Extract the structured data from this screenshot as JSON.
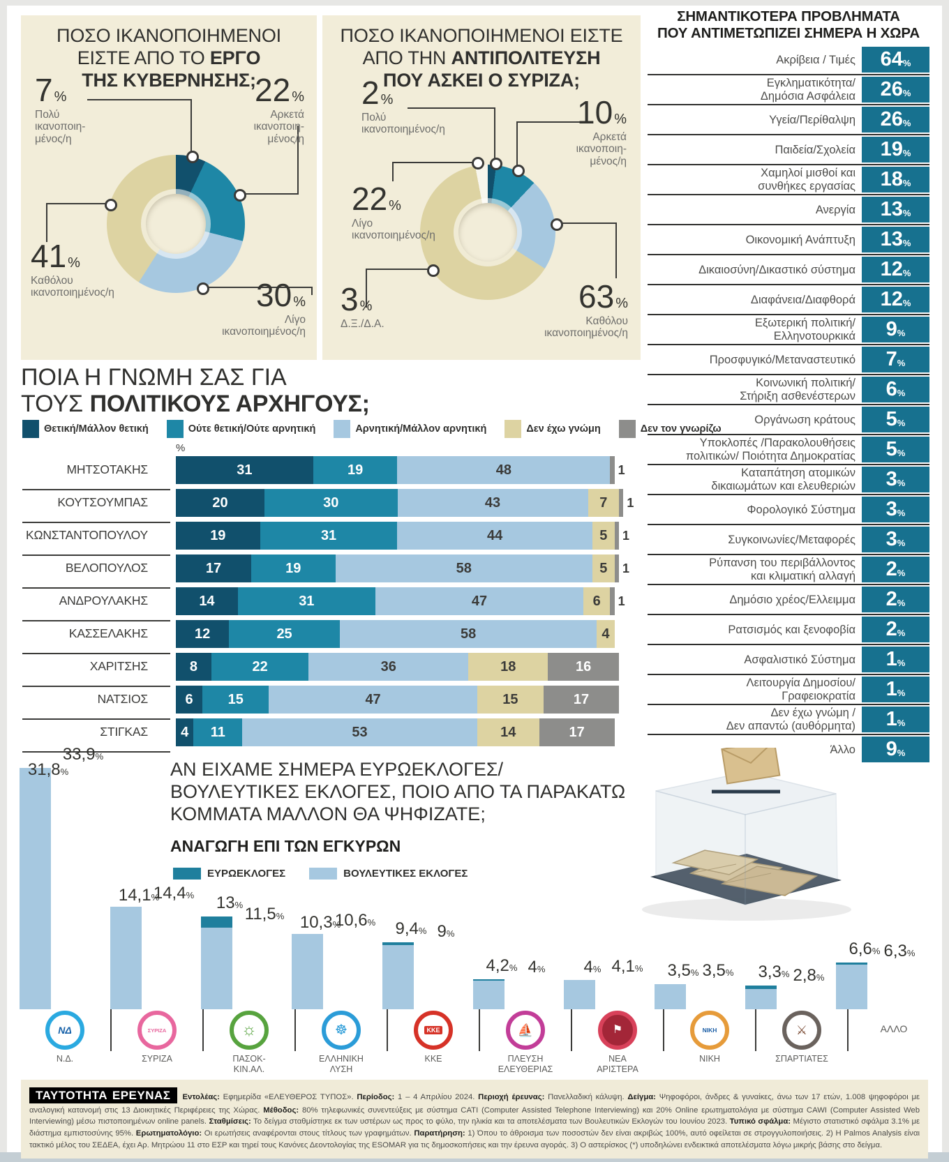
{
  "palette": {
    "pos": "#11506c",
    "neu": "#1e87a6",
    "neg": "#a6c8e0",
    "beige": "#ddd3a2",
    "gray": "#8d8d8b",
    "white": "#f8f6ec",
    "box": "#17718f",
    "euro": "#1f7f9d",
    "parl": "#a6c8e0",
    "panel": "#f2edd9"
  },
  "donut1": {
    "title_normal": "ΠΟΣΟ ΙΚΑΝΟΠΟΙΗΜΕΝΟΙ\nΕΙΣΤΕ ΑΠΟ ΤΟ ",
    "title_bold": "ΕΡΓΟ\nΤΗΣ ΚΥΒΕΡΝΗΣΗΣ;",
    "slices": [
      {
        "name": "very-satisfied",
        "value": 7,
        "color": "pos",
        "number": "7",
        "desc": "Πολύ\nικανοποιη-\nμένος/η"
      },
      {
        "name": "quite-satisfied",
        "value": 22,
        "color": "neu",
        "number": "22",
        "desc": "Αρκετά\nικανοποιη-\nμένος/η"
      },
      {
        "name": "little-satisfied",
        "value": 30,
        "color": "neg",
        "number": "30",
        "desc": "Λίγο\nικανοποιημένος/η"
      },
      {
        "name": "not-satisfied",
        "value": 41,
        "color": "beige",
        "number": "41",
        "desc": "Καθόλου\nικανοποιημένος/η"
      }
    ]
  },
  "donut2": {
    "title_normal": "ΠΟΣΟ ΙΚΑΝΟΠΟΙΗΜΕΝΟΙ ΕΙΣΤΕ\nΑΠΟ ΤΗΝ ",
    "title_bold": "ΑΝΤΙΠΟΛΙΤΕΥΣΗ\nΠΟΥ ΑΣΚΕΙ Ο ΣΥΡΙΖΑ;",
    "slices": [
      {
        "name": "very-satisfied",
        "value": 2,
        "color": "pos",
        "number": "2",
        "desc": "Πολύ\nικανοποιημένος/η"
      },
      {
        "name": "quite-satisfied",
        "value": 10,
        "color": "neu",
        "number": "10",
        "desc": "Αρκετά\nικανοποιη-\nμένος/η"
      },
      {
        "name": "little-satisfied",
        "value": 22,
        "color": "neg",
        "number": "22",
        "desc": "Λίγο\nικανοποιημένος/η"
      },
      {
        "name": "not-satisfied",
        "value": 63,
        "color": "beige",
        "number": "63",
        "desc": "Καθόλου\nικανοποιημένος/η"
      },
      {
        "name": "dont-know",
        "value": 3,
        "color": "white",
        "number": "3",
        "desc": "Δ.Ξ./Δ.Α."
      }
    ]
  },
  "problems": {
    "title": "ΣΗΜΑΝΤΙΚΟΤΕΡΑ ΠΡΟΒΛΗΜΑΤΑ\nΠΟΥ ΑΝΤΙΜΕΤΩΠΙΖΕΙ ΣΗΜΕΡΑ Η ΧΩΡΑ",
    "rows": [
      {
        "label": "Ακρίβεια / Τιμές",
        "value": "64"
      },
      {
        "label": "Εγκληματικότητα/\nΔημόσια Ασφάλεια",
        "value": "26"
      },
      {
        "label": "Υγεία/Περίθαλψη",
        "value": "26"
      },
      {
        "label": "Παιδεία/Σχολεία",
        "value": "19"
      },
      {
        "label": "Χαμηλοί μισθοί και\nσυνθήκες εργασίας",
        "value": "18"
      },
      {
        "label": "Ανεργία",
        "value": "13"
      },
      {
        "label": "Οικονομική Ανάπτυξη",
        "value": "13"
      },
      {
        "label": "Δικαιοσύνη/Δικαστικό σύστημα",
        "value": "12"
      },
      {
        "label": "Διαφάνεια/Διαφθορά",
        "value": "12"
      },
      {
        "label": "Εξωτερική πολιτική/\nΕλληνοτουρκικά",
        "value": "9"
      },
      {
        "label": "Προσφυγικό/Μεταναστευτικό",
        "value": "7"
      },
      {
        "label": "Κοινωνική πολιτική/\nΣτήριξη ασθενέστερων",
        "value": "6"
      },
      {
        "label": "Οργάνωση κράτους",
        "value": "5"
      },
      {
        "label": "Υποκλοπές /Παρακολουθήσεις\nπολιτικών/ Ποιότητα Δημοκρατίας",
        "value": "5"
      },
      {
        "label": "Καταπάτηση ατομικών\nδικαιωμάτων και ελευθεριών",
        "value": "3"
      },
      {
        "label": "Φορολογικό Σύστημα",
        "value": "3"
      },
      {
        "label": "Συγκοινωνίες/Μεταφορές",
        "value": "3"
      },
      {
        "label": "Ρύπανση του περιβάλλοντος\nκαι κλιματική αλλαγή",
        "value": "2"
      },
      {
        "label": "Δημόσιο χρέος/Ελλειμμα",
        "value": "2"
      },
      {
        "label": "Ρατσισμός και ξενοφοβία",
        "value": "2"
      },
      {
        "label": "Ασφαλιστικό Σύστημα",
        "value": "1"
      },
      {
        "label": "Λειτουργία Δημοσίου/\nΓραφειοκρατία",
        "value": "1"
      },
      {
        "label": "Δεν έχω γνώμη /\nΔεν απαντώ (αυθόρμητα)",
        "value": "1"
      },
      {
        "label": "Άλλο",
        "value": "9"
      }
    ]
  },
  "leaders": {
    "title_normal": "ΠΟΙΑ Η ΓΝΩΜΗ ΣΑΣ ΓΙΑ\nΤΟΥΣ  ",
    "title_bold": "ΠΟΛΙΤΙΚΟΥΣ ΑΡΧΗΓΟΥΣ;",
    "axis_label": "%",
    "legend": [
      {
        "key": "pos",
        "label": "Θετική/Μάλλον θετική"
      },
      {
        "key": "neu",
        "label": "Ούτε θετική/Ούτε αρνητική"
      },
      {
        "key": "neg",
        "label": "Αρνητική/Μάλλον αρνητική"
      },
      {
        "key": "beige",
        "label": "Δεν έχω γνώμη"
      },
      {
        "key": "gray",
        "label": "Δεν τον γνωρίζω"
      }
    ],
    "rows": [
      {
        "name": "ΜΗΤΣΟΤΑΚΗΣ",
        "segments": [
          {
            "color": "pos",
            "value": 31,
            "label": "31"
          },
          {
            "color": "neu",
            "value": 19,
            "label": "19"
          },
          {
            "color": "neg",
            "value": 48,
            "label": "48"
          },
          {
            "color": "gray",
            "value": 1,
            "label": ""
          }
        ],
        "outside_label": "1"
      },
      {
        "name": "ΚΟΥΤΣΟΥΜΠΑΣ",
        "segments": [
          {
            "color": "pos",
            "value": 20,
            "label": "20"
          },
          {
            "color": "neu",
            "value": 30,
            "label": "30"
          },
          {
            "color": "neg",
            "value": 43,
            "label": "43"
          },
          {
            "color": "beige",
            "value": 7,
            "label": "7"
          },
          {
            "color": "gray",
            "value": 1,
            "label": ""
          }
        ],
        "outside_label": "1"
      },
      {
        "name": "ΚΩΝΣΤΑΝΤΟΠΟΥΛΟΥ",
        "segments": [
          {
            "color": "pos",
            "value": 19,
            "label": "19"
          },
          {
            "color": "neu",
            "value": 31,
            "label": "31"
          },
          {
            "color": "neg",
            "value": 44,
            "label": "44"
          },
          {
            "color": "beige",
            "value": 5,
            "label": "5"
          },
          {
            "color": "gray",
            "value": 1,
            "label": ""
          }
        ],
        "outside_label": "1"
      },
      {
        "name": "ΒΕΛΟΠΟΥΛΟΣ",
        "segments": [
          {
            "color": "pos",
            "value": 17,
            "label": "17"
          },
          {
            "color": "neu",
            "value": 19,
            "label": "19"
          },
          {
            "color": "neg",
            "value": 58,
            "label": "58"
          },
          {
            "color": "beige",
            "value": 5,
            "label": "5"
          },
          {
            "color": "gray",
            "value": 1,
            "label": ""
          }
        ],
        "outside_label": "1"
      },
      {
        "name": "ΑΝΔΡΟΥΛΑΚΗΣ",
        "segments": [
          {
            "color": "pos",
            "value": 14,
            "label": "14"
          },
          {
            "color": "neu",
            "value": 31,
            "label": "31"
          },
          {
            "color": "neg",
            "value": 47,
            "label": "47"
          },
          {
            "color": "beige",
            "value": 6,
            "label": "6"
          },
          {
            "color": "gray",
            "value": 1,
            "label": ""
          }
        ],
        "outside_label": "1"
      },
      {
        "name": "ΚΑΣΣΕΛΑΚΗΣ",
        "segments": [
          {
            "color": "pos",
            "value": 12,
            "label": "12"
          },
          {
            "color": "neu",
            "value": 25,
            "label": "25"
          },
          {
            "color": "neg",
            "value": 58,
            "label": "58"
          },
          {
            "color": "beige",
            "value": 4,
            "label": "4"
          }
        ],
        "outside_label": ""
      },
      {
        "name": "ΧΑΡΙΤΣΗΣ",
        "segments": [
          {
            "color": "pos",
            "value": 8,
            "label": "8"
          },
          {
            "color": "neu",
            "value": 22,
            "label": "22"
          },
          {
            "color": "neg",
            "value": 36,
            "label": "36"
          },
          {
            "color": "beige",
            "value": 18,
            "label": "18"
          },
          {
            "color": "gray",
            "value": 16,
            "label": "16"
          }
        ],
        "outside_label": ""
      },
      {
        "name": "ΝΑΤΣΙΟΣ",
        "segments": [
          {
            "color": "pos",
            "value": 6,
            "label": "6"
          },
          {
            "color": "neu",
            "value": 15,
            "label": "15"
          },
          {
            "color": "neg",
            "value": 47,
            "label": "47"
          },
          {
            "color": "beige",
            "value": 15,
            "label": "15"
          },
          {
            "color": "gray",
            "value": 17,
            "label": "17"
          }
        ],
        "outside_label": ""
      },
      {
        "name": "ΣΤΙΓΚΑΣ",
        "segments": [
          {
            "color": "pos",
            "value": 4,
            "label": "4"
          },
          {
            "color": "neu",
            "value": 11,
            "label": "11"
          },
          {
            "color": "neg",
            "value": 53,
            "label": "53"
          },
          {
            "color": "beige",
            "value": 14,
            "label": "14"
          },
          {
            "color": "gray",
            "value": 17,
            "label": "17"
          }
        ],
        "outside_label": ""
      }
    ]
  },
  "election": {
    "title": "ΑΝ ΕΙΧΑΜΕ ΣΗΜΕΡΑ ΕΥΡΩΕΚΛΟΓΕΣ/\nΒΟΥΛΕΥΤΙΚΕΣ ΕΚΛΟΓΕΣ, ΠΟΙΟ ΑΠΟ ΤΑ ΠΑΡΑΚΑΤΩ\nΚΟΜΜΑΤΑ ΜΑΛΛΟΝ ΘΑ ΨΗΦΙΖΑΤΕ;",
    "subtitle": "ΑΝΑΓΩΓΗ ΕΠΙ ΤΩΝ ΕΓΚΥΡΩΝ",
    "legend": [
      {
        "key": "euro",
        "label": "ΕΥΡΩΕΚΛΟΓΕΣ"
      },
      {
        "key": "parl",
        "label": "ΒΟΥΛΕΥΤΙΚΕΣ ΕΚΛΟΓΕΣ"
      }
    ],
    "parties": [
      {
        "id": "nd",
        "name": "Ν.Δ.",
        "euro": 31.8,
        "euro_label": "31,8",
        "parl": 33.9,
        "parl_label": "33,9",
        "logo": {
          "ring": "#2aa9e0",
          "glyph": "ΝΔ",
          "cls": "g-nd",
          "bg": "#ffffff"
        }
      },
      {
        "id": "syriza",
        "name": "ΣΥΡΙΖΑ",
        "euro": 14.1,
        "euro_label": "14,1",
        "parl": 14.4,
        "parl_label": "14,4",
        "logo": {
          "ring": "#e8679e",
          "glyph": "ΣΥΡΙΖΑ",
          "cls": "g-syriza",
          "bg": "#ffffff"
        }
      },
      {
        "id": "pasok",
        "name": "ΠΑΣΟΚ-\nΚΙΝ.ΑΛ.",
        "euro": 13,
        "euro_label": "13",
        "parl": 11.5,
        "parl_label": "11,5",
        "logo": {
          "ring": "#57a33e",
          "glyph": "☼",
          "cls": "g-pasok",
          "bg": "#ffffff"
        }
      },
      {
        "id": "ellysi",
        "name": "ΕΛΛΗΝΙΚΗ\nΛΥΣΗ",
        "euro": 10.3,
        "euro_label": "10,3",
        "parl": 10.6,
        "parl_label": "10,6",
        "logo": {
          "ring": "#2b9cd8",
          "glyph": "☸",
          "cls": "g-ellysi",
          "bg": "#ffffff"
        }
      },
      {
        "id": "kke",
        "name": "ΚΚΕ",
        "euro": 9.4,
        "euro_label": "9,4",
        "parl": 9,
        "parl_label": "9",
        "logo": {
          "ring": "#d63227",
          "glyph": "ΚΚΕ",
          "cls": "g-kke",
          "bg": "#ffffff"
        }
      },
      {
        "id": "plefsi",
        "name": "ΠΛΕΥΣΗ\nΕΛΕΥΘΕΡΙΑΣ",
        "euro": 4.2,
        "euro_label": "4,2",
        "parl": 4,
        "parl_label": "4",
        "logo": {
          "ring": "#c23d98",
          "glyph": "⛵",
          "cls": "g-plefsi",
          "bg": "#ffffff"
        }
      },
      {
        "id": "nearist",
        "name": "ΝΕΑ\nΑΡΙΣΤΕΡΑ",
        "euro": 4,
        "euro_label": "4",
        "parl": 4.1,
        "parl_label": "4,1",
        "logo": {
          "ring": "#d8415a",
          "glyph": "⚑",
          "cls": "g-nearist",
          "bg": "#a32638"
        }
      },
      {
        "id": "niki",
        "name": "ΝΙΚΗ",
        "euro": 3.5,
        "euro_label": "3,5",
        "parl": 3.5,
        "parl_label": "3,5",
        "logo": {
          "ring": "#e69b3a",
          "glyph": "ΝΙΚΗ",
          "cls": "g-niki",
          "bg": "#ffffff"
        }
      },
      {
        "id": "spart",
        "name": "ΣΠΑΡΤΙΑΤΕΣ",
        "euro": 3.3,
        "euro_label": "3,3",
        "parl": 2.8,
        "parl_label": "2,8",
        "logo": {
          "ring": "#6a625d",
          "glyph": "⚔",
          "cls": "g-spart",
          "bg": "#ffffff"
        }
      },
      {
        "id": "allo",
        "name": "ΑΛΛΟ",
        "euro": 6.6,
        "euro_label": "6,6",
        "parl": 6.3,
        "parl_label": "6,3",
        "logo": null
      }
    ]
  },
  "footer": {
    "badge": "ΤΑΥΤΟΤΗΤΑ ΕΡΕΥΝΑΣ",
    "segments": [
      {
        "b": "Εντολέας:",
        "t": " Εφημερίδα «ΕΛΕΥΘΕΡΟΣ ΤΥΠΟΣ». "
      },
      {
        "b": "Περίοδος:",
        "t": " 1 – 4 Απριλίου 2024. "
      },
      {
        "b": "Περιοχή έρευνας:",
        "t": " Πανελλαδική κάλυψη. "
      },
      {
        "b": "Δείγμα:",
        "t": " Ψηφοφόροι, άνδρες & γυναίκες, άνω των 17 ετών, 1.008 ψηφοφόροι με αναλογική κατανομή στις 13 Διοικητικές Περιφέρειες της Χώρας. "
      },
      {
        "b": "Μέθοδος:",
        "t": " 80% τηλεφωνικές συνεντεύξεις με σύστημα CATI (Computer Assisted Telephone Interviewing) και 20% Online ερωτηματολόγια με σύστημα CAWI (Computer Assisted Web Interviewing) μέσω πιστοποιημένων online panels. "
      },
      {
        "b": "Σταθμίσεις:",
        "t": " Το δείγμα σταθμίστηκε εκ των υστέρων ως προς το φύλο, την ηλικία και τα αποτελέσματα των Βουλευτικών Εκλογών του Ιουνίου 2023. "
      },
      {
        "b": "Τυπικό σφάλμα:",
        "t": " Μέγιστο στατιστικό σφάλμα  3.1% με διάστημα εμπιστοσύνης 95%. "
      },
      {
        "b": "Ερωτηματολόγιο:",
        "t": " Οι ερωτήσεις αναφέρονται στους τίτλους των γραφημάτων. "
      },
      {
        "b": "Παρατήρηση:",
        "t": " 1) Όπου το άθροισμα των ποσοστών δεν είναι ακριβώς 100%, αυτό οφείλεται σε στρογγυλοποιήσεις. 2) Η Palmos Analysis είναι τακτικό μέλος του ΣΕΔΕΑ, έχει Αρ. Μητρώου 11 στο ΕΣΡ και τηρεί τους Κανόνες Δεοντολογίας της ESOMAR για τις δημοσκοπήσεις και την έρευνα αγοράς. 3) Ο αστερίσκος (*) υποδηλώνει ενδεικτικά αποτελέσματα λόγω μικρής βάσης στο δείγμα."
      }
    ]
  },
  "chart_data": [
    {
      "type": "pie",
      "title": "ΠΟΣΟ ΙΚΑΝΟΠΟΙΗΜΕΝΟΙ ΕΙΣΤΕ ΑΠΟ ΤΟ ΕΡΓΟ ΤΗΣ ΚΥΒΕΡΝΗΣΗΣ;",
      "labels": [
        "Πολύ ικανοποιημένος/η",
        "Αρκετά ικανοποιημένος/η",
        "Λίγο ικανοποιημένος/η",
        "Καθόλου ικανοποιημένος/η"
      ],
      "values": [
        7,
        22,
        30,
        41
      ]
    },
    {
      "type": "pie",
      "title": "ΠΟΣΟ ΙΚΑΝΟΠΟΙΗΜΕΝΟΙ ΕΙΣΤΕ ΑΠΟ ΤΗΝ ΑΝΤΙΠΟΛΙΤΕΥΣΗ ΠΟΥ ΑΣΚΕΙ Ο ΣΥΡΙΖΑ;",
      "labels": [
        "Πολύ ικανοποιημένος/η",
        "Αρκετά ικανοποιημένος/η",
        "Λίγο ικανοποιημένος/η",
        "Καθόλου ικανοποιημένος/η",
        "Δ.Ξ./Δ.Α."
      ],
      "values": [
        2,
        10,
        22,
        63,
        3
      ]
    },
    {
      "type": "bar",
      "subtype": "horizontal-stacked",
      "title": "ΠΟΙΑ Η ΓΝΩΜΗ ΣΑΣ ΓΙΑ ΤΟΥΣ ΠΟΛΙΤΙΚΟΥΣ ΑΡΧΗΓΟΥΣ;",
      "categories": [
        "ΜΗΤΣΟΤΑΚΗΣ",
        "ΚΟΥΤΣΟΥΜΠΑΣ",
        "ΚΩΝΣΤΑΝΤΟΠΟΥΛΟΥ",
        "ΒΕΛΟΠΟΥΛΟΣ",
        "ΑΝΔΡΟΥΛΑΚΗΣ",
        "ΚΑΣΣΕΛΑΚΗΣ",
        "ΧΑΡΙΤΣΗΣ",
        "ΝΑΤΣΙΟΣ",
        "ΣΤΙΓΚΑΣ"
      ],
      "series": [
        {
          "name": "Θετική/Μάλλον θετική",
          "values": [
            31,
            20,
            19,
            17,
            14,
            12,
            8,
            6,
            4
          ]
        },
        {
          "name": "Ούτε θετική/Ούτε αρνητική",
          "values": [
            19,
            30,
            31,
            19,
            31,
            25,
            22,
            15,
            11
          ]
        },
        {
          "name": "Αρνητική/Μάλλον αρνητική",
          "values": [
            48,
            43,
            44,
            58,
            47,
            58,
            36,
            47,
            53
          ]
        },
        {
          "name": "Δεν έχω γνώμη",
          "values": [
            0,
            7,
            5,
            5,
            6,
            4,
            18,
            15,
            14
          ]
        },
        {
          "name": "Δεν τον γνωρίζω",
          "values": [
            1,
            1,
            1,
            1,
            1,
            0,
            16,
            17,
            17
          ]
        }
      ],
      "xlim": [
        0,
        100
      ],
      "unit": "%"
    },
    {
      "type": "bar",
      "subtype": "value-list",
      "title": "ΣΗΜΑΝΤΙΚΟΤΕΡΑ ΠΡΟΒΛΗΜΑΤΑ ΠΟΥ ΑΝΤΙΜΕΤΩΠΙΖΕΙ ΣΗΜΕΡΑ Η ΧΩΡΑ",
      "categories": [
        "Ακρίβεια / Τιμές",
        "Εγκληματικότητα/Δημόσια Ασφάλεια",
        "Υγεία/Περίθαλψη",
        "Παιδεία/Σχολεία",
        "Χαμηλοί μισθοί και συνθήκες εργασίας",
        "Ανεργία",
        "Οικονομική Ανάπτυξη",
        "Δικαιοσύνη/Δικαστικό σύστημα",
        "Διαφάνεια/Διαφθορά",
        "Εξωτερική πολιτική/Ελληνοτουρκικά",
        "Προσφυγικό/Μεταναστευτικό",
        "Κοινωνική πολιτική/Στήριξη ασθενέστερων",
        "Οργάνωση κράτους",
        "Υποκλοπές /Παρακολουθήσεις πολιτικών/ Ποιότητα Δημοκρατίας",
        "Καταπάτηση ατομικών δικαιωμάτων και ελευθεριών",
        "Φορολογικό Σύστημα",
        "Συγκοινωνίες/Μεταφορές",
        "Ρύπανση του περιβάλλοντος και κλιματική αλλαγή",
        "Δημόσιο χρέος/Ελλειμμα",
        "Ρατσισμός και ξενοφοβία",
        "Ασφαλιστικό Σύστημα",
        "Λειτουργία Δημοσίου/Γραφειοκρατία",
        "Δεν έχω γνώμη / Δεν απαντώ (αυθόρμητα)",
        "Άλλο"
      ],
      "values": [
        64,
        26,
        26,
        19,
        18,
        13,
        13,
        12,
        12,
        9,
        7,
        6,
        5,
        5,
        3,
        3,
        3,
        2,
        2,
        2,
        1,
        1,
        1,
        9
      ],
      "unit": "%"
    },
    {
      "type": "bar",
      "subtype": "grouped-vertical",
      "title": "ΑΝ ΕΙΧΑΜΕ ΣΗΜΕΡΑ ΕΥΡΩΕΚΛΟΓΕΣ/ΒΟΥΛΕΥΤΙΚΕΣ ΕΚΛΟΓΕΣ, ΠΟΙΟ ΑΠΟ ΤΑ ΠΑΡΑΚΑΤΩ ΚΟΜΜΑΤΑ ΜΑΛΛΟΝ ΘΑ ΨΗΦΙΖΑΤΕ; (ΑΝΑΓΩΓΗ ΕΠΙ ΤΩΝ ΕΓΚΥΡΩΝ)",
      "categories": [
        "Ν.Δ.",
        "ΣΥΡΙΖΑ",
        "ΠΑΣΟΚ-ΚΙΝ.ΑΛ.",
        "ΕΛΛΗΝΙΚΗ ΛΥΣΗ",
        "ΚΚΕ",
        "ΠΛΕΥΣΗ ΕΛΕΥΘΕΡΙΑΣ",
        "ΝΕΑ ΑΡΙΣΤΕΡΑ",
        "ΝΙΚΗ",
        "ΣΠΑΡΤΙΑΤΕΣ",
        "ΑΛΛΟ"
      ],
      "series": [
        {
          "name": "ΕΥΡΩΕΚΛΟΓΕΣ",
          "values": [
            31.8,
            14.1,
            13,
            10.3,
            9.4,
            4.2,
            4,
            3.5,
            3.3,
            6.6
          ]
        },
        {
          "name": "ΒΟΥΛΕΥΤΙΚΕΣ ΕΚΛΟΓΕΣ",
          "values": [
            33.9,
            14.4,
            11.5,
            10.6,
            9,
            4,
            4.1,
            3.5,
            2.8,
            6.3
          ]
        }
      ],
      "unit": "%"
    }
  ]
}
